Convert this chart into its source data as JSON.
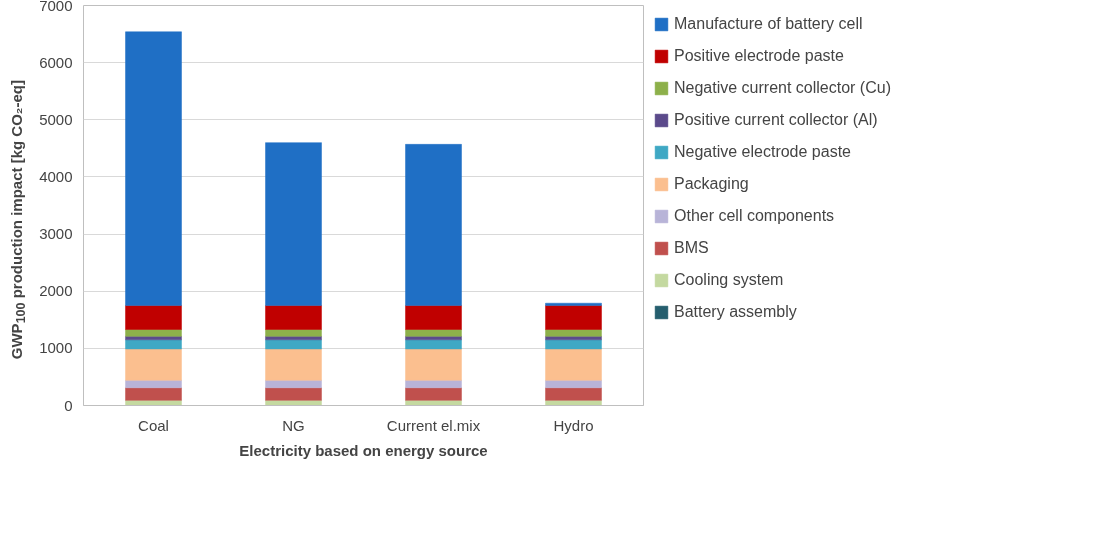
{
  "chart_data": {
    "type": "bar",
    "stacked": true,
    "xlabel": "Electricity based on energy source",
    "ylabel": "GWP$_{100}$ production impact [kg CO₂-eq]",
    "categories": [
      "Coal",
      "NG",
      "Current el.mix",
      "Hydro"
    ],
    "ylim": [
      0,
      7000
    ],
    "yticks": [
      0,
      1000,
      2000,
      3000,
      4000,
      5000,
      6000,
      7000
    ],
    "grid": "y",
    "legend": "right",
    "series": [
      {
        "name": "Battery assembly",
        "color": "#255e6e",
        "values": [
          null,
          null,
          null,
          null
        ]
      },
      {
        "name": "Cooling system",
        "color": "#c4d9a0",
        "values": [
          90,
          90,
          90,
          90
        ]
      },
      {
        "name": "BMS",
        "color": "#c0504d",
        "values": [
          220,
          220,
          220,
          220
        ]
      },
      {
        "name": "Other cell components",
        "color": "#b8b4d8",
        "values": [
          130,
          130,
          130,
          130
        ]
      },
      {
        "name": "Packaging",
        "color": "#fbbf8f",
        "values": [
          550,
          550,
          550,
          550
        ]
      },
      {
        "name": "Negative electrode paste",
        "color": "#3fa8c4",
        "values": [
          160,
          160,
          160,
          160
        ]
      },
      {
        "name": "Positive current collector (Al)",
        "color": "#5b4a8b",
        "values": [
          60,
          60,
          60,
          60
        ]
      },
      {
        "name": "Negative current collector (Cu)",
        "color": "#8db04a",
        "values": [
          120,
          120,
          120,
          120
        ]
      },
      {
        "name": "Positive electrode paste",
        "color": "#c00000",
        "values": [
          420,
          420,
          420,
          420
        ]
      },
      {
        "name": "Manufacture of battery cell",
        "color": "#1f6fc5",
        "values": [
          4790,
          2850,
          2820,
          40
        ]
      }
    ]
  }
}
